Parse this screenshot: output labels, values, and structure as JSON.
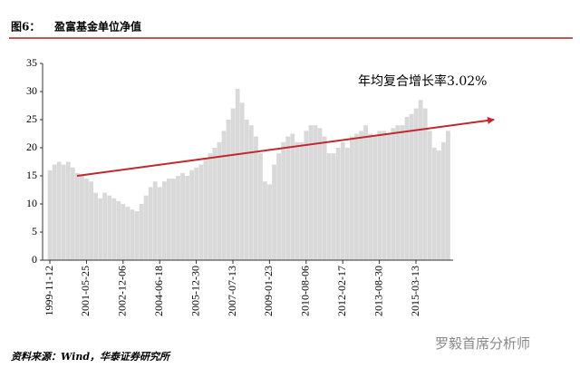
{
  "chart_data": {
    "type": "bar",
    "figure_label": "图6：",
    "title": "盈富基金单位净值",
    "annotation": "年均复合增长率3.02%",
    "source": "资料来源：Wind，华泰证券研究所",
    "watermark": "罗毅首席分析师",
    "color": "#d9d9d9",
    "trend_line": {
      "color": "#c0282d",
      "from": 15,
      "to": 25
    },
    "categories": [
      "1999-11-12",
      null,
      null,
      null,
      null,
      null,
      null,
      null,
      "2001-05-25",
      null,
      null,
      null,
      null,
      null,
      null,
      null,
      "2002-12-06",
      null,
      null,
      null,
      null,
      null,
      null,
      null,
      "2004-06-18",
      null,
      null,
      null,
      null,
      null,
      null,
      null,
      "2005-12-30",
      null,
      null,
      null,
      null,
      null,
      null,
      null,
      "2007-07-13",
      null,
      null,
      null,
      null,
      null,
      null,
      null,
      "2009-01-23",
      null,
      null,
      null,
      null,
      null,
      null,
      null,
      "2010-08-06",
      null,
      null,
      null,
      null,
      null,
      null,
      null,
      "2012-02-17",
      null,
      null,
      null,
      null,
      null,
      null,
      null,
      "2013-08-30",
      null,
      null,
      null,
      null,
      null,
      null,
      null,
      "2015-03-13",
      null,
      null,
      null,
      null,
      null,
      null,
      null
    ],
    "values": [
      16,
      17,
      17.5,
      17,
      17.5,
      16.5,
      15.5,
      15,
      14.5,
      14,
      12,
      11,
      12,
      11.5,
      11,
      10.5,
      10,
      9.5,
      9,
      8.7,
      10,
      11.5,
      13,
      14,
      13,
      14,
      14.5,
      14.5,
      15,
      15.5,
      15,
      16,
      16.5,
      17,
      18,
      19,
      20,
      21,
      23,
      25,
      27,
      30.5,
      28,
      25,
      24,
      22,
      19,
      14,
      13.5,
      17,
      19,
      21,
      22,
      22.5,
      21,
      21,
      23,
      24,
      24,
      23.5,
      22,
      19,
      19,
      20,
      21,
      20,
      22,
      22.5,
      23,
      24,
      22.5,
      22,
      23,
      23,
      22.5,
      23.5,
      24,
      24,
      25.5,
      26,
      27,
      28.5,
      27,
      23,
      20,
      19.5,
      21,
      23
    ],
    "ylim": [
      0,
      35
    ],
    "yticks": [
      0,
      5,
      10,
      15,
      20,
      25,
      30,
      35
    ]
  }
}
